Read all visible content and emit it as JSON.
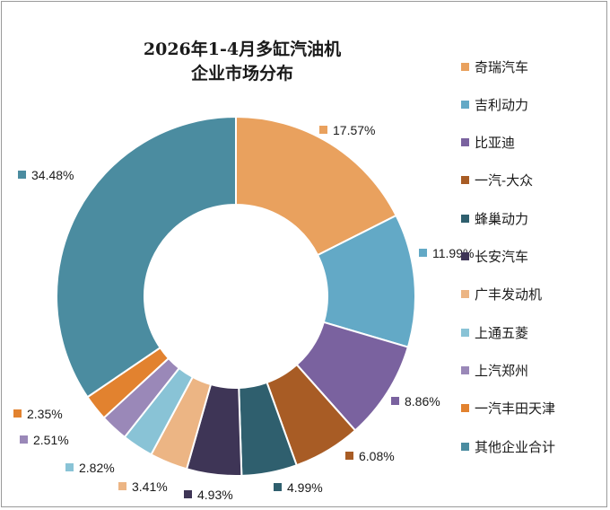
{
  "chart_data": {
    "type": "pie",
    "subtype": "donut",
    "title": [
      "2026年1-4月多缸汽油机",
      "企业市场分布"
    ],
    "legend_position": "right",
    "slices": [
      {
        "name": "奇瑞汽车",
        "label": "17.57%",
        "value": 17.57,
        "color": "#E9A15E"
      },
      {
        "name": "吉利动力",
        "label": "11.99%",
        "value": 11.99,
        "color": "#63A9C6"
      },
      {
        "name": "比亚迪",
        "label": "8.86%",
        "value": 8.86,
        "color": "#7A629F"
      },
      {
        "name": "一汽-大众",
        "label": "6.08%",
        "value": 6.08,
        "color": "#A85C25"
      },
      {
        "name": "蜂巢动力",
        "label": "4.99%",
        "value": 4.99,
        "color": "#2F5F6E"
      },
      {
        "name": "长安汽车",
        "label": "4.93%",
        "value": 4.93,
        "color": "#3E3556"
      },
      {
        "name": "广丰发动机",
        "label": "3.41%",
        "value": 3.41,
        "color": "#ECB584"
      },
      {
        "name": "上通五菱",
        "label": "2.82%",
        "value": 2.82,
        "color": "#89C3D6"
      },
      {
        "name": "上汽郑州",
        "label": "2.51%",
        "value": 2.51,
        "color": "#9A88B8"
      },
      {
        "name": "一汽丰田天津",
        "label": "2.35%",
        "value": 2.35,
        "color": "#E2822F"
      },
      {
        "name": "其他企业合计",
        "label": "34.48%",
        "value": 34.48,
        "color": "#4B8CA0"
      }
    ]
  }
}
